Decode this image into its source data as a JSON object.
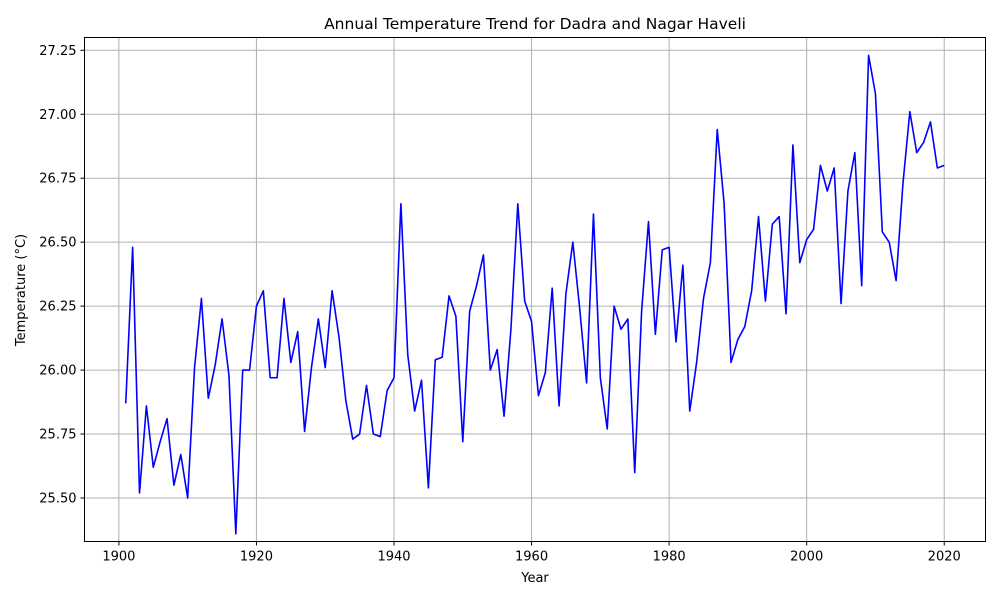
{
  "chart_data": {
    "type": "line",
    "title": "Annual Temperature Trend for Dadra and Nagar Haveli",
    "xlabel": "Year",
    "ylabel": "Temperature (°C)",
    "xlim": [
      1895,
      2026
    ],
    "ylim": [
      25.33,
      27.3
    ],
    "x_ticks": [
      1900,
      1920,
      1940,
      1960,
      1980,
      2000,
      2020
    ],
    "y_ticks": [
      25.5,
      25.75,
      26.0,
      26.25,
      26.5,
      26.75,
      27.0,
      27.25
    ],
    "x_tick_labels": [
      "1900",
      "1920",
      "1940",
      "1960",
      "1980",
      "2000",
      "2020"
    ],
    "y_tick_labels": [
      "25.50",
      "25.75",
      "26.00",
      "26.25",
      "26.50",
      "26.75",
      "27.00",
      "27.25"
    ],
    "grid": true,
    "colors": {
      "line": "#0000ff",
      "grid": "#b0b0b0",
      "axis": "#000000"
    },
    "series": [
      {
        "x": [
          1901,
          1902,
          1903,
          1904,
          1905,
          1906,
          1907,
          1908,
          1909,
          1910,
          1911,
          1912,
          1913,
          1914,
          1915,
          1916,
          1917,
          1918,
          1919,
          1920,
          1921,
          1922,
          1923,
          1924,
          1925,
          1926,
          1927,
          1928,
          1929,
          1930,
          1931,
          1932,
          1933,
          1934,
          1935,
          1936,
          1937,
          1938,
          1939,
          1940,
          1941,
          1942,
          1943,
          1944,
          1945,
          1946,
          1947,
          1948,
          1949,
          1950,
          1951,
          1952,
          1953,
          1954,
          1955,
          1956,
          1957,
          1958,
          1959,
          1960,
          1961,
          1962,
          1963,
          1964,
          1965,
          1966,
          1967,
          1968,
          1969,
          1970,
          1971,
          1972,
          1973,
          1974,
          1975,
          1976,
          1977,
          1978,
          1979,
          1980,
          1981,
          1982,
          1983,
          1984,
          1985,
          1986,
          1987,
          1988,
          1989,
          1990,
          1991,
          1992,
          1993,
          1994,
          1995,
          1996,
          1997,
          1998,
          1999,
          2000,
          2001,
          2002,
          2003,
          2004,
          2005,
          2006,
          2007,
          2008,
          2009,
          2010,
          2011,
          2012,
          2013,
          2014,
          2015,
          2016,
          2017,
          2018,
          2019,
          2020
        ],
        "y": [
          25.87,
          26.48,
          25.52,
          25.86,
          25.62,
          25.72,
          25.81,
          25.55,
          25.67,
          25.5,
          26.01,
          26.28,
          25.89,
          26.02,
          26.2,
          25.98,
          25.36,
          26.0,
          26.0,
          26.25,
          26.31,
          25.97,
          25.97,
          26.28,
          26.03,
          26.15,
          25.76,
          26.01,
          26.2,
          26.01,
          26.31,
          26.13,
          25.88,
          25.73,
          25.75,
          25.94,
          25.75,
          25.74,
          25.92,
          25.97,
          26.65,
          26.06,
          25.84,
          25.96,
          25.54,
          26.04,
          26.05,
          26.29,
          26.21,
          25.72,
          26.23,
          26.33,
          26.45,
          26.0,
          26.08,
          25.82,
          26.16,
          26.65,
          26.27,
          26.19,
          25.9,
          25.99,
          26.32,
          25.86,
          26.3,
          26.5,
          26.24,
          25.95,
          26.61,
          25.97,
          25.77,
          26.25,
          26.16,
          26.2,
          25.6,
          26.23,
          26.58,
          26.14,
          26.47,
          26.48,
          26.11,
          26.41,
          25.84,
          26.03,
          26.28,
          26.42,
          26.94,
          26.65,
          26.03,
          26.12,
          26.17,
          26.31,
          26.6,
          26.27,
          26.57,
          26.6,
          26.22,
          26.88,
          26.42,
          26.51,
          26.55,
          26.8,
          26.7,
          26.79,
          26.26,
          26.7,
          26.85,
          26.33,
          27.23,
          27.08,
          26.54,
          26.5,
          26.35,
          26.73,
          27.01,
          26.85,
          26.89,
          26.97,
          26.79,
          26.8
        ]
      }
    ]
  }
}
